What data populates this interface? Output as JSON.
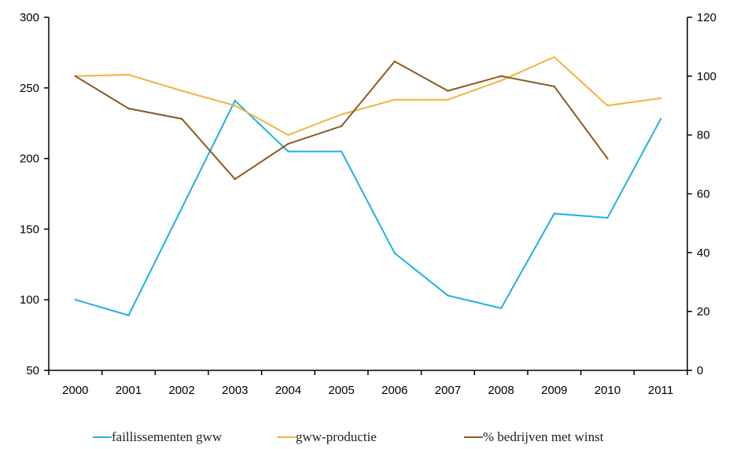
{
  "chart_data": {
    "type": "line",
    "categories": [
      "2000",
      "2001",
      "2002",
      "2003",
      "2004",
      "2005",
      "2006",
      "2007",
      "2008",
      "2009",
      "2010",
      "2011"
    ],
    "y_left": {
      "min": 50,
      "max": 300,
      "ticks": [
        "50",
        "100",
        "150",
        "200",
        "250",
        "300"
      ]
    },
    "y_right": {
      "min": 0,
      "max": 120,
      "ticks": [
        "0",
        "20",
        "40",
        "60",
        "80",
        "100",
        "120"
      ]
    },
    "series": [
      {
        "name": "faillissementen gww",
        "axis": "left",
        "color": "#1fb3e0",
        "values": [
          100,
          89,
          165,
          241,
          205,
          205,
          133,
          103,
          94,
          161,
          158,
          228
        ]
      },
      {
        "name": "gww-productie",
        "axis": "right",
        "color": "#f2b33d",
        "values": [
          100,
          100.5,
          95,
          90,
          80,
          87,
          92,
          92,
          98.5,
          106.5,
          90,
          92.5
        ]
      },
      {
        "name": "% bedrijven met winst",
        "axis": "right",
        "color": "#8b5a22",
        "values": [
          100,
          89,
          85.5,
          65,
          77,
          83,
          105,
          95,
          100,
          96.5,
          72,
          null
        ]
      }
    ],
    "legend_position": "bottom",
    "grid": false,
    "xlabel": "",
    "ylabel": "",
    "y2label": "",
    "title": ""
  }
}
